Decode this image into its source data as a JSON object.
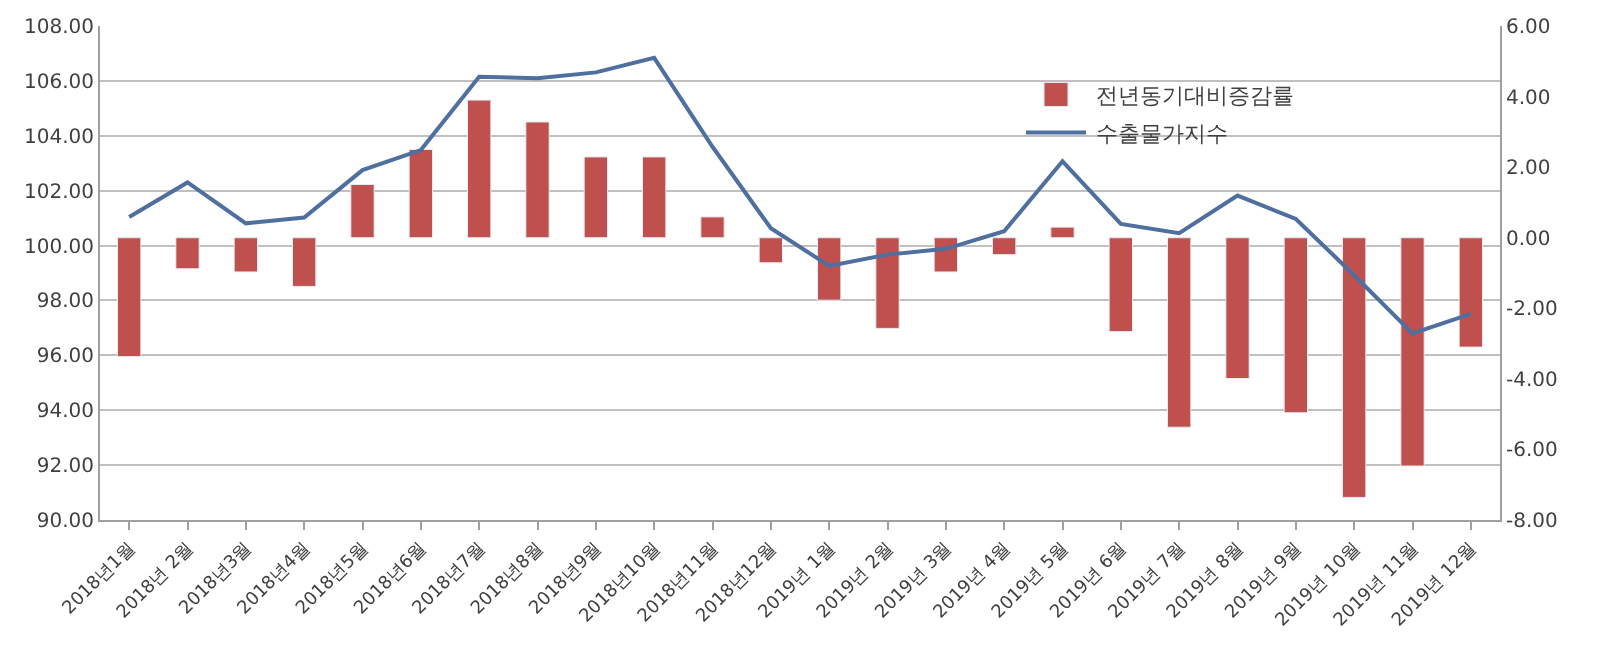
{
  "chart_data": {
    "type": "bar",
    "categories": [
      "2018년1월",
      "2018년 2월",
      "2018년3월",
      "2018년4월",
      "2018년5월",
      "2018년6월",
      "2018년7월",
      "2018년8월",
      "2018년9월",
      "2018년10월",
      "2018년11월",
      "2018년12월",
      "2019년 1월",
      "2019년 2월",
      "2019년 3월",
      "2019년 4월",
      "2019년 5월",
      "2019년 6월",
      "2019년 7월",
      "2019년 8월",
      "2019년 9월",
      "2019년 10월",
      "2019년 11월",
      "2019년 12월"
    ],
    "series": [
      {
        "name": "전년동기대비증감률",
        "axis": "y2",
        "color": "#c0504d",
        "values": [
          -3.37,
          -0.88,
          -0.97,
          -1.38,
          1.51,
          2.5,
          3.9,
          3.28,
          2.29,
          2.29,
          0.59,
          -0.71,
          -1.77,
          -2.57,
          -0.97,
          -0.48,
          0.3,
          -2.66,
          -5.37,
          -3.99,
          -4.96,
          -7.36,
          -6.47,
          -3.1
        ]
      },
      {
        "name": "수출물가지수",
        "type": "line",
        "axis": "y",
        "color": "#4f6f9f",
        "values": [
          101.04,
          102.3,
          100.81,
          101.02,
          102.75,
          103.48,
          106.15,
          106.1,
          106.31,
          106.84,
          103.6,
          100.63,
          99.26,
          99.67,
          99.88,
          100.52,
          103.07,
          100.79,
          100.45,
          101.82,
          100.97,
          98.92,
          96.8,
          97.51
        ]
      }
    ],
    "ylim": [
      90,
      108
    ],
    "yticks": [
      {
        "value": 90,
        "label": "90.00"
      },
      {
        "value": 92,
        "label": "92.00"
      },
      {
        "value": 94,
        "label": "94.00"
      },
      {
        "value": 96,
        "label": "96.00"
      },
      {
        "value": 98,
        "label": "98.00"
      },
      {
        "value": 100,
        "label": "100.00"
      },
      {
        "value": 102,
        "label": "102.00"
      },
      {
        "value": 104,
        "label": "104.00"
      },
      {
        "value": 106,
        "label": "106.00"
      },
      {
        "value": 108,
        "label": "108.00"
      }
    ],
    "y2lim": [
      -8,
      6
    ],
    "y2ticks": [
      {
        "value": -8,
        "label": "-8.00"
      },
      {
        "value": -6,
        "label": "-6.00"
      },
      {
        "value": -4,
        "label": "-4.00"
      },
      {
        "value": -2,
        "label": "-2.00"
      },
      {
        "value": 0,
        "label": "0.00"
      },
      {
        "value": 2,
        "label": "2.00"
      },
      {
        "value": 4,
        "label": "4.00"
      },
      {
        "value": 6,
        "label": "6.00"
      }
    ],
    "grid": "y",
    "legend": "top right",
    "marker": "none",
    "line_style": "solid"
  }
}
